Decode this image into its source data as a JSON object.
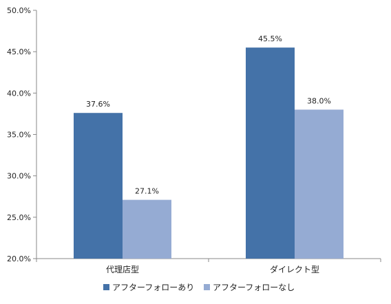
{
  "chart_data": {
    "type": "bar",
    "categories": [
      "代理店型",
      "ダイレクト型"
    ],
    "series": [
      {
        "name": "アフターフォローあり",
        "values": [
          37.6,
          45.5
        ],
        "labels": [
          "37.6%",
          "45.5%"
        ],
        "color": "#4472a8"
      },
      {
        "name": "アフターフォローなし",
        "values": [
          27.1,
          38.0
        ],
        "labels": [
          "27.1%",
          "38.0%"
        ],
        "color": "#95abd3"
      }
    ],
    "ylim": [
      20,
      50
    ],
    "yticks": [
      "20.0%",
      "25.0%",
      "30.0%",
      "35.0%",
      "40.0%",
      "45.0%",
      "50.0%"
    ],
    "title": "",
    "xlabel": "",
    "ylabel": "",
    "grid": false,
    "legend_position": "bottom"
  }
}
